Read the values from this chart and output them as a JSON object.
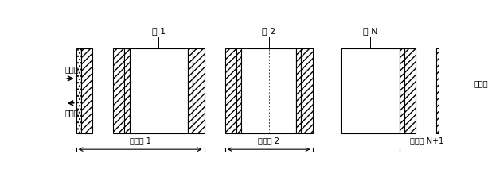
{
  "fig_width": 6.13,
  "fig_height": 2.23,
  "dpi": 100,
  "bg_color": "#ffffff",
  "cavity_labels": [
    "腔 1",
    "腔 2",
    "腔 N"
  ],
  "multilayer_labels": [
    "多层膜 1",
    "多层膜 2",
    "多层膜 N+1"
  ],
  "input_label": "入射光",
  "reflect_label": "反射光",
  "transmit_label": "透射光"
}
